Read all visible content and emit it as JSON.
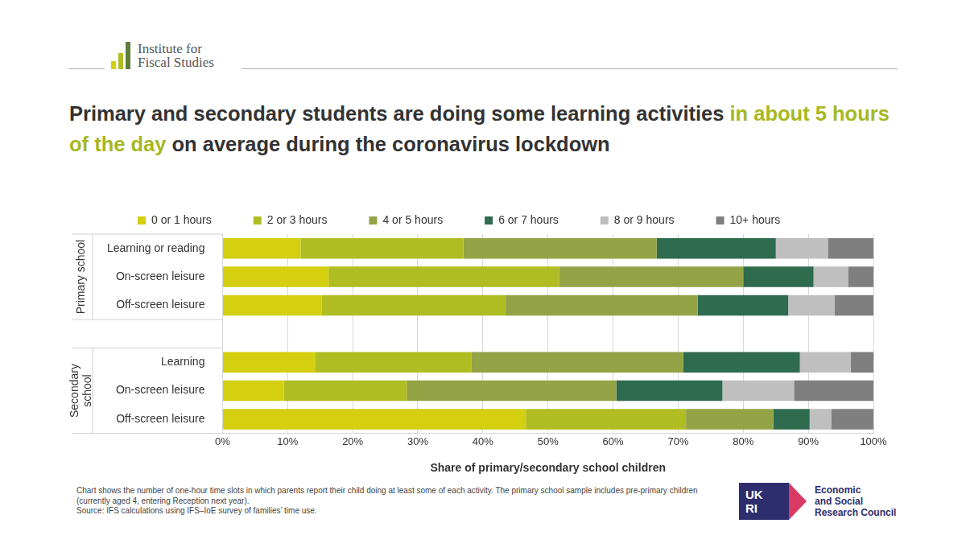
{
  "header": {
    "logo_text": [
      "Institute for",
      "Fiscal Studies"
    ]
  },
  "chart_data": {
    "type": "bar",
    "title": "Primary and secondary students are doing some learning activities in about 5 hours of the day on average during the coronavirus lockdown",
    "title_highlight": "in about 5 hours of the day",
    "orientation": "horizontal",
    "stacked": true,
    "grid": true,
    "legend": "top",
    "categories": [
      "Learning or reading",
      "On-screen leisure",
      "Off-screen leisure",
      null,
      "Learning",
      "On-screen leisure",
      "Off-screen leisure"
    ],
    "category_groups": [
      "Primary school",
      "Primary school",
      "Primary school",
      null,
      "Secondary school",
      "Secondary school",
      "Secondary school"
    ],
    "series": [
      {
        "name": "0 or 1 hours",
        "color": "#d4cf0f",
        "values": [
          12,
          16.3,
          15.2,
          null,
          14.2,
          9.4,
          46.6
        ]
      },
      {
        "name": "2 or 3 hours",
        "color": "#afbd22",
        "values": [
          25,
          35.4,
          28.3,
          null,
          24,
          18.9,
          24.6
        ]
      },
      {
        "name": "4 or 5 hours",
        "color": "#93a346",
        "values": [
          29.7,
          28.3,
          29.5,
          null,
          32.6,
          32.2,
          13.4
        ]
      },
      {
        "name": "6 or 7 hours",
        "color": "#2e6b4f",
        "values": [
          18.3,
          10.8,
          13.9,
          null,
          17.9,
          16.3,
          5.6
        ]
      },
      {
        "name": "8 or 9 hours",
        "color": "#bfbfbf",
        "values": [
          8,
          5.3,
          7.1,
          null,
          7.8,
          11,
          3.3
        ]
      },
      {
        "name": "10+ hours",
        "color": "#7f7f7f",
        "values": [
          7,
          3.9,
          6,
          null,
          3.5,
          12.2,
          6.5
        ]
      }
    ],
    "xlabel": "Share of primary/secondary school children",
    "xlim": [
      0,
      100
    ],
    "xticks": [
      {
        "value": 0,
        "label": "0%"
      },
      {
        "value": 10,
        "label": "10%"
      },
      {
        "value": 20,
        "label": "20%"
      },
      {
        "value": 30,
        "label": "30%"
      },
      {
        "value": 40,
        "label": "40%"
      },
      {
        "value": 50,
        "label": "50%"
      },
      {
        "value": 60,
        "label": "60%"
      },
      {
        "value": 70,
        "label": "70%"
      },
      {
        "value": 80,
        "label": "80%"
      },
      {
        "value": 90,
        "label": "90%"
      },
      {
        "value": 100,
        "label": "100%"
      }
    ]
  },
  "footer": {
    "notes": [
      "Chart shows the number of one-hour time slots in which parents report their child doing at least some of each activity. The primary school sample includes pre-primary children (currently aged 4, entering Reception next year).",
      "Source: IFS calculations using IFS–IoE survey of families’ time use."
    ],
    "funder_logo": [
      "UK",
      "RI"
    ],
    "funder": [
      "Economic",
      "and Social",
      "Research Council"
    ]
  }
}
